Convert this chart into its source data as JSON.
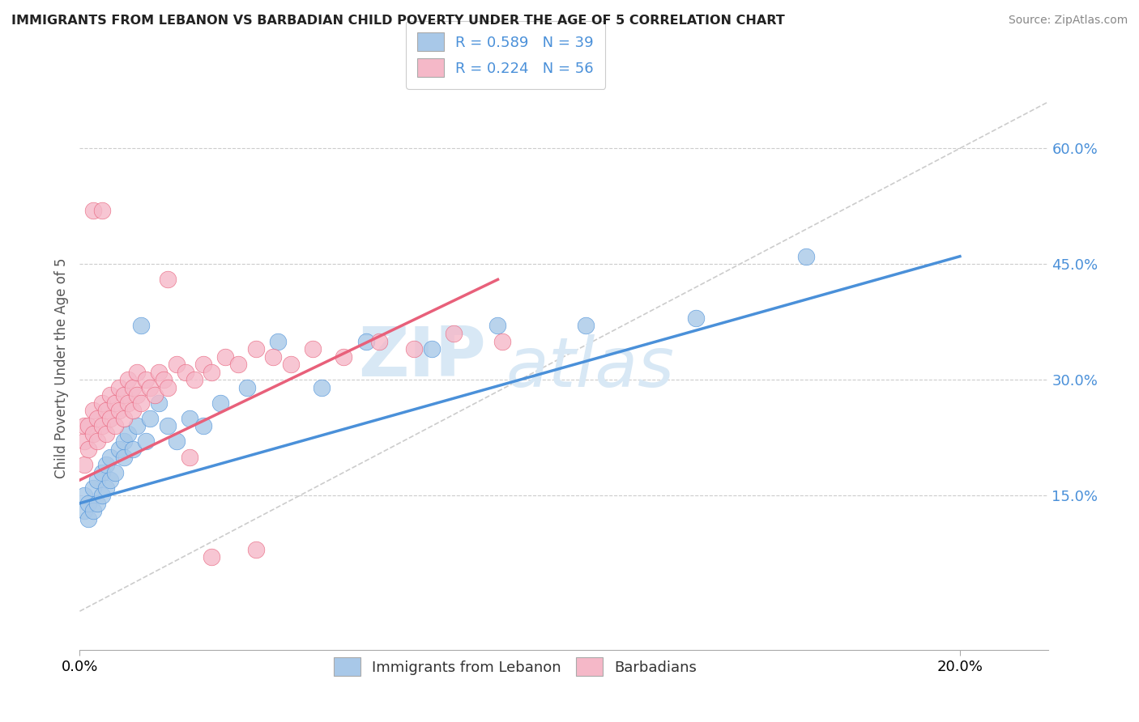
{
  "title": "IMMIGRANTS FROM LEBANON VS BARBADIAN CHILD POVERTY UNDER THE AGE OF 5 CORRELATION CHART",
  "source": "Source: ZipAtlas.com",
  "ylabel": "Child Poverty Under the Age of 5",
  "ytick_values": [
    0.15,
    0.3,
    0.45,
    0.6
  ],
  "xlim": [
    0.0,
    0.22
  ],
  "ylim": [
    -0.05,
    0.68
  ],
  "color_blue": "#A8C8E8",
  "color_pink": "#F5B8C8",
  "color_blue_line": "#4A90D9",
  "color_pink_line": "#E8607A",
  "watermark_color": "#D8E8F5",
  "blue_scatter_x": [
    0.001,
    0.001,
    0.002,
    0.002,
    0.003,
    0.003,
    0.004,
    0.004,
    0.005,
    0.005,
    0.006,
    0.006,
    0.007,
    0.007,
    0.008,
    0.009,
    0.01,
    0.01,
    0.011,
    0.012,
    0.013,
    0.014,
    0.015,
    0.016,
    0.018,
    0.02,
    0.022,
    0.025,
    0.028,
    0.032,
    0.038,
    0.045,
    0.055,
    0.065,
    0.08,
    0.095,
    0.115,
    0.14,
    0.165
  ],
  "blue_scatter_y": [
    0.13,
    0.15,
    0.12,
    0.14,
    0.13,
    0.16,
    0.14,
    0.17,
    0.15,
    0.18,
    0.16,
    0.19,
    0.17,
    0.2,
    0.18,
    0.21,
    0.2,
    0.22,
    0.23,
    0.21,
    0.24,
    0.37,
    0.22,
    0.25,
    0.27,
    0.24,
    0.22,
    0.25,
    0.24,
    0.27,
    0.29,
    0.35,
    0.29,
    0.35,
    0.34,
    0.37,
    0.37,
    0.38,
    0.46
  ],
  "pink_scatter_x": [
    0.001,
    0.001,
    0.001,
    0.002,
    0.002,
    0.003,
    0.003,
    0.004,
    0.004,
    0.005,
    0.005,
    0.006,
    0.006,
    0.007,
    0.007,
    0.008,
    0.008,
    0.009,
    0.009,
    0.01,
    0.01,
    0.011,
    0.011,
    0.012,
    0.012,
    0.013,
    0.013,
    0.014,
    0.015,
    0.016,
    0.017,
    0.018,
    0.019,
    0.02,
    0.022,
    0.024,
    0.026,
    0.028,
    0.03,
    0.033,
    0.036,
    0.04,
    0.044,
    0.048,
    0.053,
    0.06,
    0.068,
    0.076,
    0.085,
    0.096,
    0.003,
    0.005,
    0.02,
    0.025,
    0.03,
    0.04
  ],
  "pink_scatter_y": [
    0.19,
    0.22,
    0.24,
    0.21,
    0.24,
    0.23,
    0.26,
    0.22,
    0.25,
    0.24,
    0.27,
    0.23,
    0.26,
    0.25,
    0.28,
    0.24,
    0.27,
    0.26,
    0.29,
    0.25,
    0.28,
    0.27,
    0.3,
    0.26,
    0.29,
    0.28,
    0.31,
    0.27,
    0.3,
    0.29,
    0.28,
    0.31,
    0.3,
    0.29,
    0.32,
    0.31,
    0.3,
    0.32,
    0.31,
    0.33,
    0.32,
    0.34,
    0.33,
    0.32,
    0.34,
    0.33,
    0.35,
    0.34,
    0.36,
    0.35,
    0.52,
    0.52,
    0.43,
    0.2,
    0.07,
    0.08
  ],
  "blue_line_x": [
    0.0,
    0.2
  ],
  "blue_line_y": [
    0.14,
    0.46
  ],
  "pink_line_x": [
    0.0,
    0.095
  ],
  "pink_line_y": [
    0.17,
    0.43
  ],
  "dashed_line_x": [
    0.0,
    0.22
  ],
  "dashed_line_y": [
    0.0,
    0.66
  ]
}
